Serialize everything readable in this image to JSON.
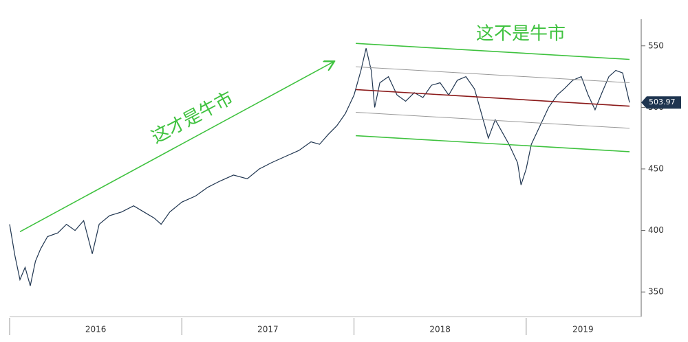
{
  "chart_data": {
    "type": "line",
    "annotations": [
      {
        "text": "这才是牛市",
        "color": "#3fc23f"
      },
      {
        "text": "这不是牛市",
        "color": "#3fc23f"
      }
    ],
    "xlim": [
      2016,
      2019.62
    ],
    "xticks": [
      {
        "value": 2016.5,
        "label": "2016"
      },
      {
        "value": 2017.5,
        "label": "2017"
      },
      {
        "value": 2018.5,
        "label": "2018"
      },
      {
        "value": 2019.33,
        "label": "2019"
      }
    ],
    "x_dividers": [
      2016,
      2017,
      2018,
      2019
    ],
    "ylim": [
      330,
      580
    ],
    "yticks": [
      350,
      400,
      450,
      500,
      550
    ],
    "series": [
      {
        "color": "#1f3550",
        "x": [
          2016.0,
          2016.03,
          2016.06,
          2016.09,
          2016.12,
          2016.15,
          2016.18,
          2016.22,
          2016.28,
          2016.33,
          2016.38,
          2016.43,
          2016.48,
          2016.52,
          2016.58,
          2016.65,
          2016.72,
          2016.78,
          2016.84,
          2016.88,
          2016.93,
          2017.0,
          2017.08,
          2017.15,
          2017.22,
          2017.3,
          2017.38,
          2017.45,
          2017.52,
          2017.6,
          2017.68,
          2017.75,
          2017.8,
          2017.85,
          2017.9,
          2017.95,
          2018.0,
          2018.04,
          2018.07,
          2018.1,
          2018.12,
          2018.15,
          2018.2,
          2018.25,
          2018.3,
          2018.35,
          2018.4,
          2018.45,
          2018.5,
          2018.55,
          2018.6,
          2018.65,
          2018.7,
          2018.75,
          2018.78,
          2018.82,
          2018.86,
          2018.9,
          2018.95,
          2018.97,
          2019.0,
          2019.03,
          2019.08,
          2019.13,
          2019.18,
          2019.22,
          2019.27,
          2019.32,
          2019.36,
          2019.4,
          2019.44,
          2019.48,
          2019.52,
          2019.56,
          2019.6
        ],
        "values": [
          405,
          380,
          360,
          370,
          355,
          375,
          385,
          395,
          398,
          405,
          400,
          408,
          381,
          405,
          412,
          415,
          420,
          415,
          410,
          405,
          415,
          423,
          428,
          435,
          440,
          445,
          442,
          450,
          455,
          460,
          465,
          472,
          470,
          478,
          485,
          495,
          510,
          530,
          548,
          530,
          500,
          520,
          525,
          510,
          505,
          512,
          508,
          518,
          520,
          510,
          522,
          525,
          515,
          490,
          475,
          490,
          480,
          470,
          455,
          437,
          450,
          470,
          485,
          500,
          510,
          515,
          522,
          525,
          510,
          498,
          512,
          525,
          530,
          528,
          503.97
        ]
      },
      {
        "color": "#3fc23f",
        "x": [
          2018.01,
          2019.6
        ],
        "values": [
          552,
          539
        ]
      },
      {
        "color": "#999999",
        "x": [
          2018.01,
          2019.6
        ],
        "values": [
          533,
          520
        ]
      },
      {
        "color": "#8b1a1a",
        "x": [
          2018.01,
          2019.6
        ],
        "values": [
          514.5,
          501
        ]
      },
      {
        "color": "#999999",
        "x": [
          2018.01,
          2019.6
        ],
        "values": [
          496,
          483
        ]
      },
      {
        "color": "#3fc23f",
        "x": [
          2018.01,
          2019.6
        ],
        "values": [
          477,
          464
        ]
      },
      {
        "color": "#3fc23f",
        "arrow": true,
        "x": [
          2016.06,
          2017.88
        ],
        "values": [
          399,
          537
        ]
      }
    ]
  }
}
